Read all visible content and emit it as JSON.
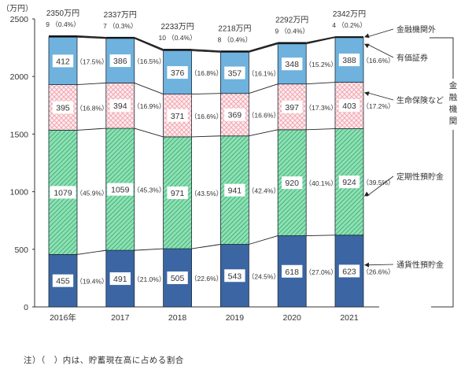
{
  "chart_data": {
    "type": "bar",
    "stacked": true,
    "title": "",
    "unit_label": "（万円）",
    "xlabel": "",
    "ylabel": "万円",
    "ylim": [
      0,
      2500
    ],
    "yticks": [
      0,
      500,
      1000,
      1500,
      2000,
      2500
    ],
    "categories": [
      "2016年",
      "2017",
      "2018",
      "2019",
      "2020",
      "2021"
    ],
    "totals": [
      2350,
      2337,
      2233,
      2218,
      2292,
      2342
    ],
    "total_labels": [
      "2350万円",
      "2337万円",
      "2233万円",
      "2218万円",
      "2292万円",
      "2342万円"
    ],
    "series": [
      {
        "name": "通貨性預貯金",
        "key": "currency_deposits",
        "color": "#3a64a0",
        "pattern": "solid",
        "values": [
          455,
          491,
          505,
          543,
          618,
          623
        ],
        "shares": [
          "(19.4%)",
          "(21.0%)",
          "(22.6%)",
          "(24.5%)",
          "(27.0%)",
          "(26.6%)"
        ]
      },
      {
        "name": "定期性預貯金",
        "key": "time_deposits",
        "color": "#5ec98f",
        "pattern": "diagonal-hatch",
        "values": [
          1079,
          1059,
          971,
          941,
          920,
          924
        ],
        "shares": [
          "(45.9%)",
          "(45.3%)",
          "(43.5%)",
          "(42.4%)",
          "(40.1%)",
          "(39.5%)"
        ]
      },
      {
        "name": "生命保険など",
        "key": "life_insurance",
        "color": "#f4b8bf",
        "pattern": "crosshatch",
        "values": [
          395,
          394,
          371,
          369,
          397,
          403
        ],
        "shares": [
          "(16.8%)",
          "(16.9%)",
          "(16.6%)",
          "(16.6%)",
          "(17.3%)",
          "(17.2%)"
        ]
      },
      {
        "name": "有価証券",
        "key": "securities",
        "color": "#6aaedb",
        "pattern": "solid",
        "values": [
          412,
          386,
          376,
          357,
          348,
          388
        ],
        "shares": [
          "(17.5%)",
          "(16.5%)",
          "(16.8%)",
          "(16.1%)",
          "(15.2%)",
          "(16.6%)"
        ]
      },
      {
        "name": "金融機関外",
        "key": "non_financial",
        "color": "#ffffff",
        "pattern": "line",
        "values": [
          9,
          7,
          10,
          8,
          9,
          4
        ],
        "shares": [
          "(0.4%)",
          "(0.3%)",
          "(0.4%)",
          "(0.4%)",
          "(0.4%)",
          "(0.2%)"
        ]
      }
    ],
    "legend": {
      "position": "right",
      "entries": [
        "金融機関外",
        "有価証券",
        "生命保険など",
        "定期性預貯金",
        "通貨性預貯金"
      ],
      "group_label": "金融機関"
    },
    "grid": false,
    "annotations": [
      "注）（　）内は、貯蓄現在高に占める割合"
    ]
  },
  "legend": {
    "non_financial": "金融機関外",
    "securities": "有価証券",
    "life_insurance": "生命保険など",
    "time_deposits": "定期性預貯金",
    "currency_deposits": "通貨性預貯金",
    "group": [
      "金",
      "融",
      "機",
      "関"
    ]
  },
  "footnote": "注）（　）内は、貯蓄現在高に占める割合"
}
